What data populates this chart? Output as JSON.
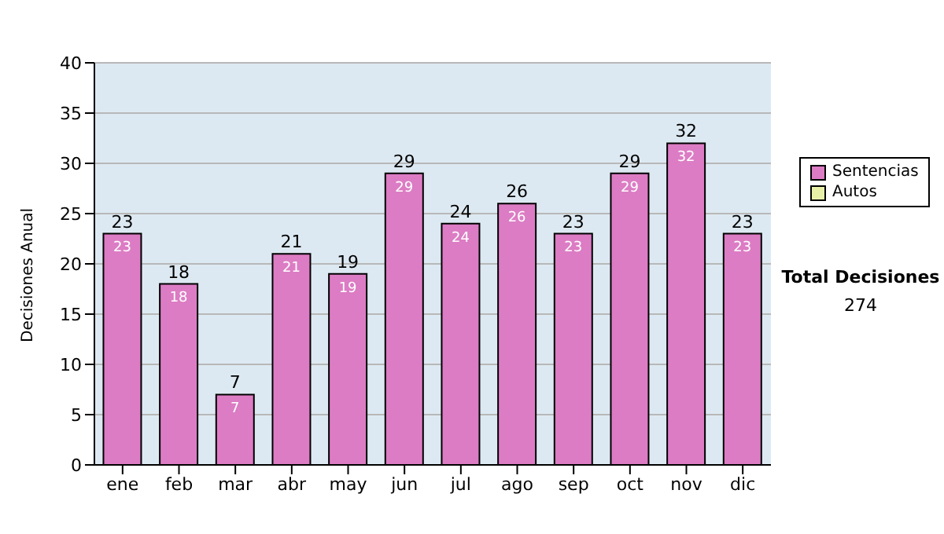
{
  "chart_data": {
    "type": "bar",
    "ylabel": "Decisiones Anual",
    "categories": [
      "ene",
      "feb",
      "mar",
      "abr",
      "may",
      "jun",
      "jul",
      "ago",
      "sep",
      "oct",
      "nov",
      "dic"
    ],
    "series": [
      {
        "name": "Sentencias",
        "color": "#dc7cc4",
        "values": [
          23,
          18,
          7,
          21,
          19,
          29,
          24,
          26,
          23,
          29,
          32,
          23
        ]
      },
      {
        "name": "Autos",
        "color": "#e8f0a8",
        "values": [
          null,
          null,
          null,
          null,
          null,
          null,
          null,
          null,
          null,
          null,
          null,
          null
        ]
      }
    ],
    "stacked": true,
    "data_labels": true,
    "totals": [
      "23",
      "18",
      "7",
      "21",
      "19",
      "29",
      "24",
      "26",
      "23",
      "29",
      "32",
      "23"
    ],
    "ylim": [
      0,
      40
    ],
    "yticks": [
      0,
      5,
      10,
      15,
      20,
      25,
      30,
      35,
      40
    ],
    "grid": "y",
    "legend": "right",
    "annotations": [
      "Total Decisiones",
      "274"
    ]
  }
}
